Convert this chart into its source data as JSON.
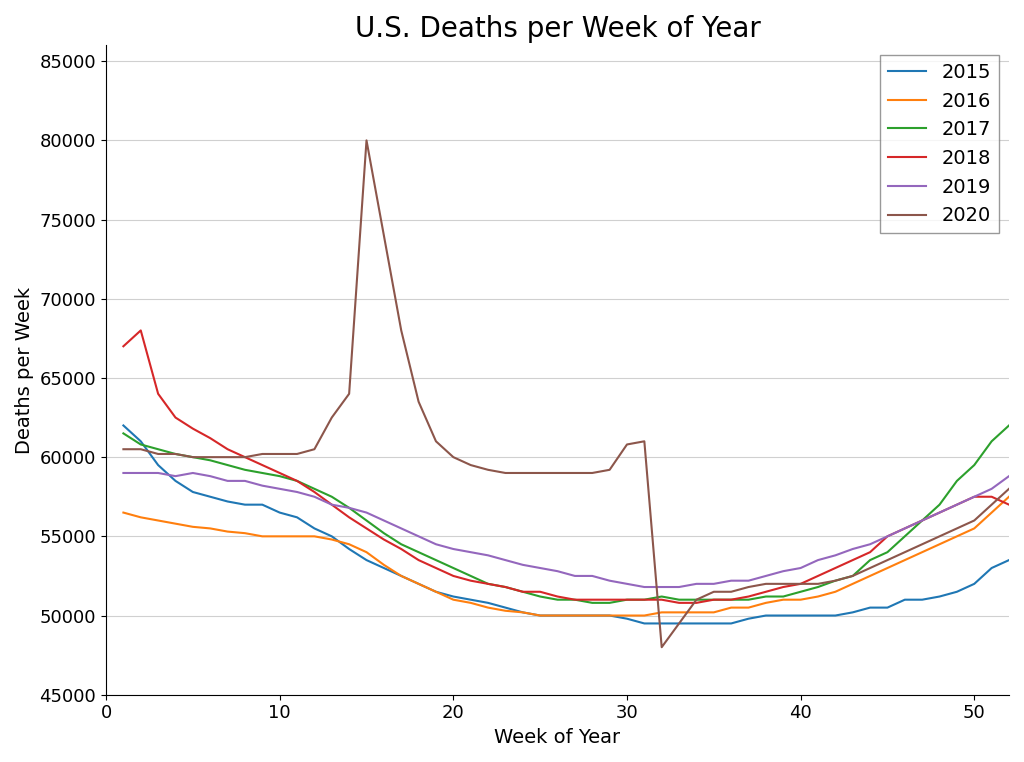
{
  "title": "U.S. Deaths per Week of Year",
  "xlabel": "Week of Year",
  "ylabel": "Deaths per Week",
  "ylim": [
    45000,
    86000
  ],
  "xlim": [
    0,
    52
  ],
  "title_fontsize": 20,
  "label_fontsize": 14,
  "tick_fontsize": 13,
  "legend_fontsize": 14,
  "years": [
    "2015",
    "2016",
    "2017",
    "2018",
    "2019",
    "2020"
  ],
  "colors": [
    "#1f77b4",
    "#ff7f0e",
    "#2ca02c",
    "#d62728",
    "#9467bd",
    "#8c564b"
  ],
  "data": {
    "2015": [
      62000,
      61000,
      59500,
      58500,
      57800,
      57500,
      57200,
      57000,
      57000,
      56500,
      56200,
      55500,
      55000,
      54200,
      53500,
      53000,
      52500,
      52000,
      51500,
      51200,
      51000,
      50800,
      50500,
      50200,
      50000,
      50000,
      50000,
      50000,
      50000,
      49800,
      49500,
      49500,
      49500,
      49500,
      49500,
      49500,
      49800,
      50000,
      50000,
      50000,
      50000,
      50000,
      50200,
      50500,
      50500,
      51000,
      51000,
      51200,
      51500,
      52000,
      53000,
      53500
    ],
    "2016": [
      56500,
      56200,
      56000,
      55800,
      55600,
      55500,
      55300,
      55200,
      55000,
      55000,
      55000,
      55000,
      54800,
      54500,
      54000,
      53200,
      52500,
      52000,
      51500,
      51000,
      50800,
      50500,
      50300,
      50200,
      50000,
      50000,
      50000,
      50000,
      50000,
      50000,
      50000,
      50200,
      50200,
      50200,
      50200,
      50500,
      50500,
      50800,
      51000,
      51000,
      51200,
      51500,
      52000,
      52500,
      53000,
      53500,
      54000,
      54500,
      55000,
      55500,
      56500,
      57500
    ],
    "2017": [
      61500,
      60800,
      60500,
      60200,
      60000,
      59800,
      59500,
      59200,
      59000,
      58800,
      58500,
      58000,
      57500,
      56800,
      56000,
      55200,
      54500,
      54000,
      53500,
      53000,
      52500,
      52000,
      51800,
      51500,
      51200,
      51000,
      51000,
      50800,
      50800,
      51000,
      51000,
      51200,
      51000,
      51000,
      51000,
      51000,
      51000,
      51200,
      51200,
      51500,
      51800,
      52200,
      52500,
      53500,
      54000,
      55000,
      56000,
      57000,
      58500,
      59500,
      61000,
      62000
    ],
    "2018": [
      67000,
      68000,
      64000,
      62500,
      61800,
      61200,
      60500,
      60000,
      59500,
      59000,
      58500,
      57800,
      57000,
      56200,
      55500,
      54800,
      54200,
      53500,
      53000,
      52500,
      52200,
      52000,
      51800,
      51500,
      51500,
      51200,
      51000,
      51000,
      51000,
      51000,
      51000,
      51000,
      50800,
      50800,
      51000,
      51000,
      51200,
      51500,
      51800,
      52000,
      52500,
      53000,
      53500,
      54000,
      55000,
      55500,
      56000,
      56500,
      57000,
      57500,
      57500,
      57000
    ],
    "2019": [
      59000,
      59000,
      59000,
      58800,
      59000,
      58800,
      58500,
      58500,
      58200,
      58000,
      57800,
      57500,
      57000,
      56800,
      56500,
      56000,
      55500,
      55000,
      54500,
      54200,
      54000,
      53800,
      53500,
      53200,
      53000,
      52800,
      52500,
      52500,
      52200,
      52000,
      51800,
      51800,
      51800,
      52000,
      52000,
      52200,
      52200,
      52500,
      52800,
      53000,
      53500,
      53800,
      54200,
      54500,
      55000,
      55500,
      56000,
      56500,
      57000,
      57500,
      58000,
      58800
    ],
    "2020": [
      60500,
      60500,
      60200,
      60200,
      60000,
      60000,
      60000,
      60000,
      60200,
      60200,
      60200,
      60500,
      62500,
      64000,
      80000,
      74000,
      68000,
      63500,
      61000,
      60000,
      59500,
      59200,
      59000,
      59000,
      59000,
      59000,
      59000,
      59000,
      59200,
      60800,
      61000,
      48000,
      49500,
      51000,
      51500,
      51500,
      51800,
      52000,
      52000,
      52000,
      52000,
      52200,
      52500,
      53000,
      53500,
      54000,
      54500,
      55000,
      55500,
      56000,
      57000,
      58000
    ]
  }
}
